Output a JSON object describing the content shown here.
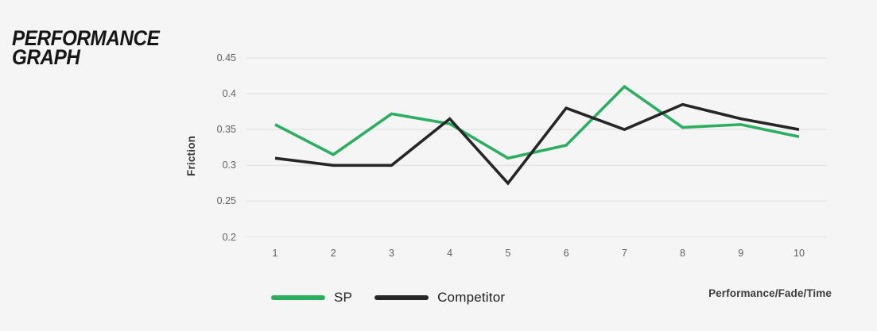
{
  "page": {
    "background_color": "#f5f5f5"
  },
  "header": {
    "title_line1": "PERFORMANCE",
    "title_line2": "GRAPH"
  },
  "chart_data": {
    "type": "line",
    "title": "Performance Graph",
    "ylabel": "Friction",
    "xlabel": "Performance/Fade/Time",
    "x": [
      1,
      2,
      3,
      4,
      5,
      6,
      7,
      8,
      9,
      10
    ],
    "xtick_labels": [
      "1",
      "2",
      "3",
      "4",
      "5",
      "6",
      "7",
      "8",
      "9",
      "10"
    ],
    "ylim": [
      0.2,
      0.45
    ],
    "yticks": [
      {
        "value": 0.45,
        "label": "0.45"
      },
      {
        "value": 0.4,
        "label": "0.4"
      },
      {
        "value": 0.35,
        "label": "0.35"
      },
      {
        "value": 0.3,
        "label": "0.3"
      },
      {
        "value": 0.25,
        "label": "0.25"
      },
      {
        "value": 0.2,
        "label": "0.2"
      }
    ],
    "grid": "horizontal",
    "legend_position": "bottom",
    "series": [
      {
        "name": "SP",
        "color": "#2bae60",
        "values": [
          0.357,
          0.315,
          0.372,
          0.358,
          0.31,
          0.328,
          0.41,
          0.353,
          0.357,
          0.34
        ]
      },
      {
        "name": "Competitor",
        "color": "#262626",
        "values": [
          0.31,
          0.3,
          0.3,
          0.365,
          0.275,
          0.38,
          0.35,
          0.385,
          0.365,
          0.35
        ]
      }
    ]
  },
  "colors": {
    "grid_line": "#e4e4e4",
    "tick_text": "#5f5f5f",
    "axis_label_text": "#333333",
    "legend_text": "#222222",
    "footnote_text": "#3d3d3d"
  }
}
